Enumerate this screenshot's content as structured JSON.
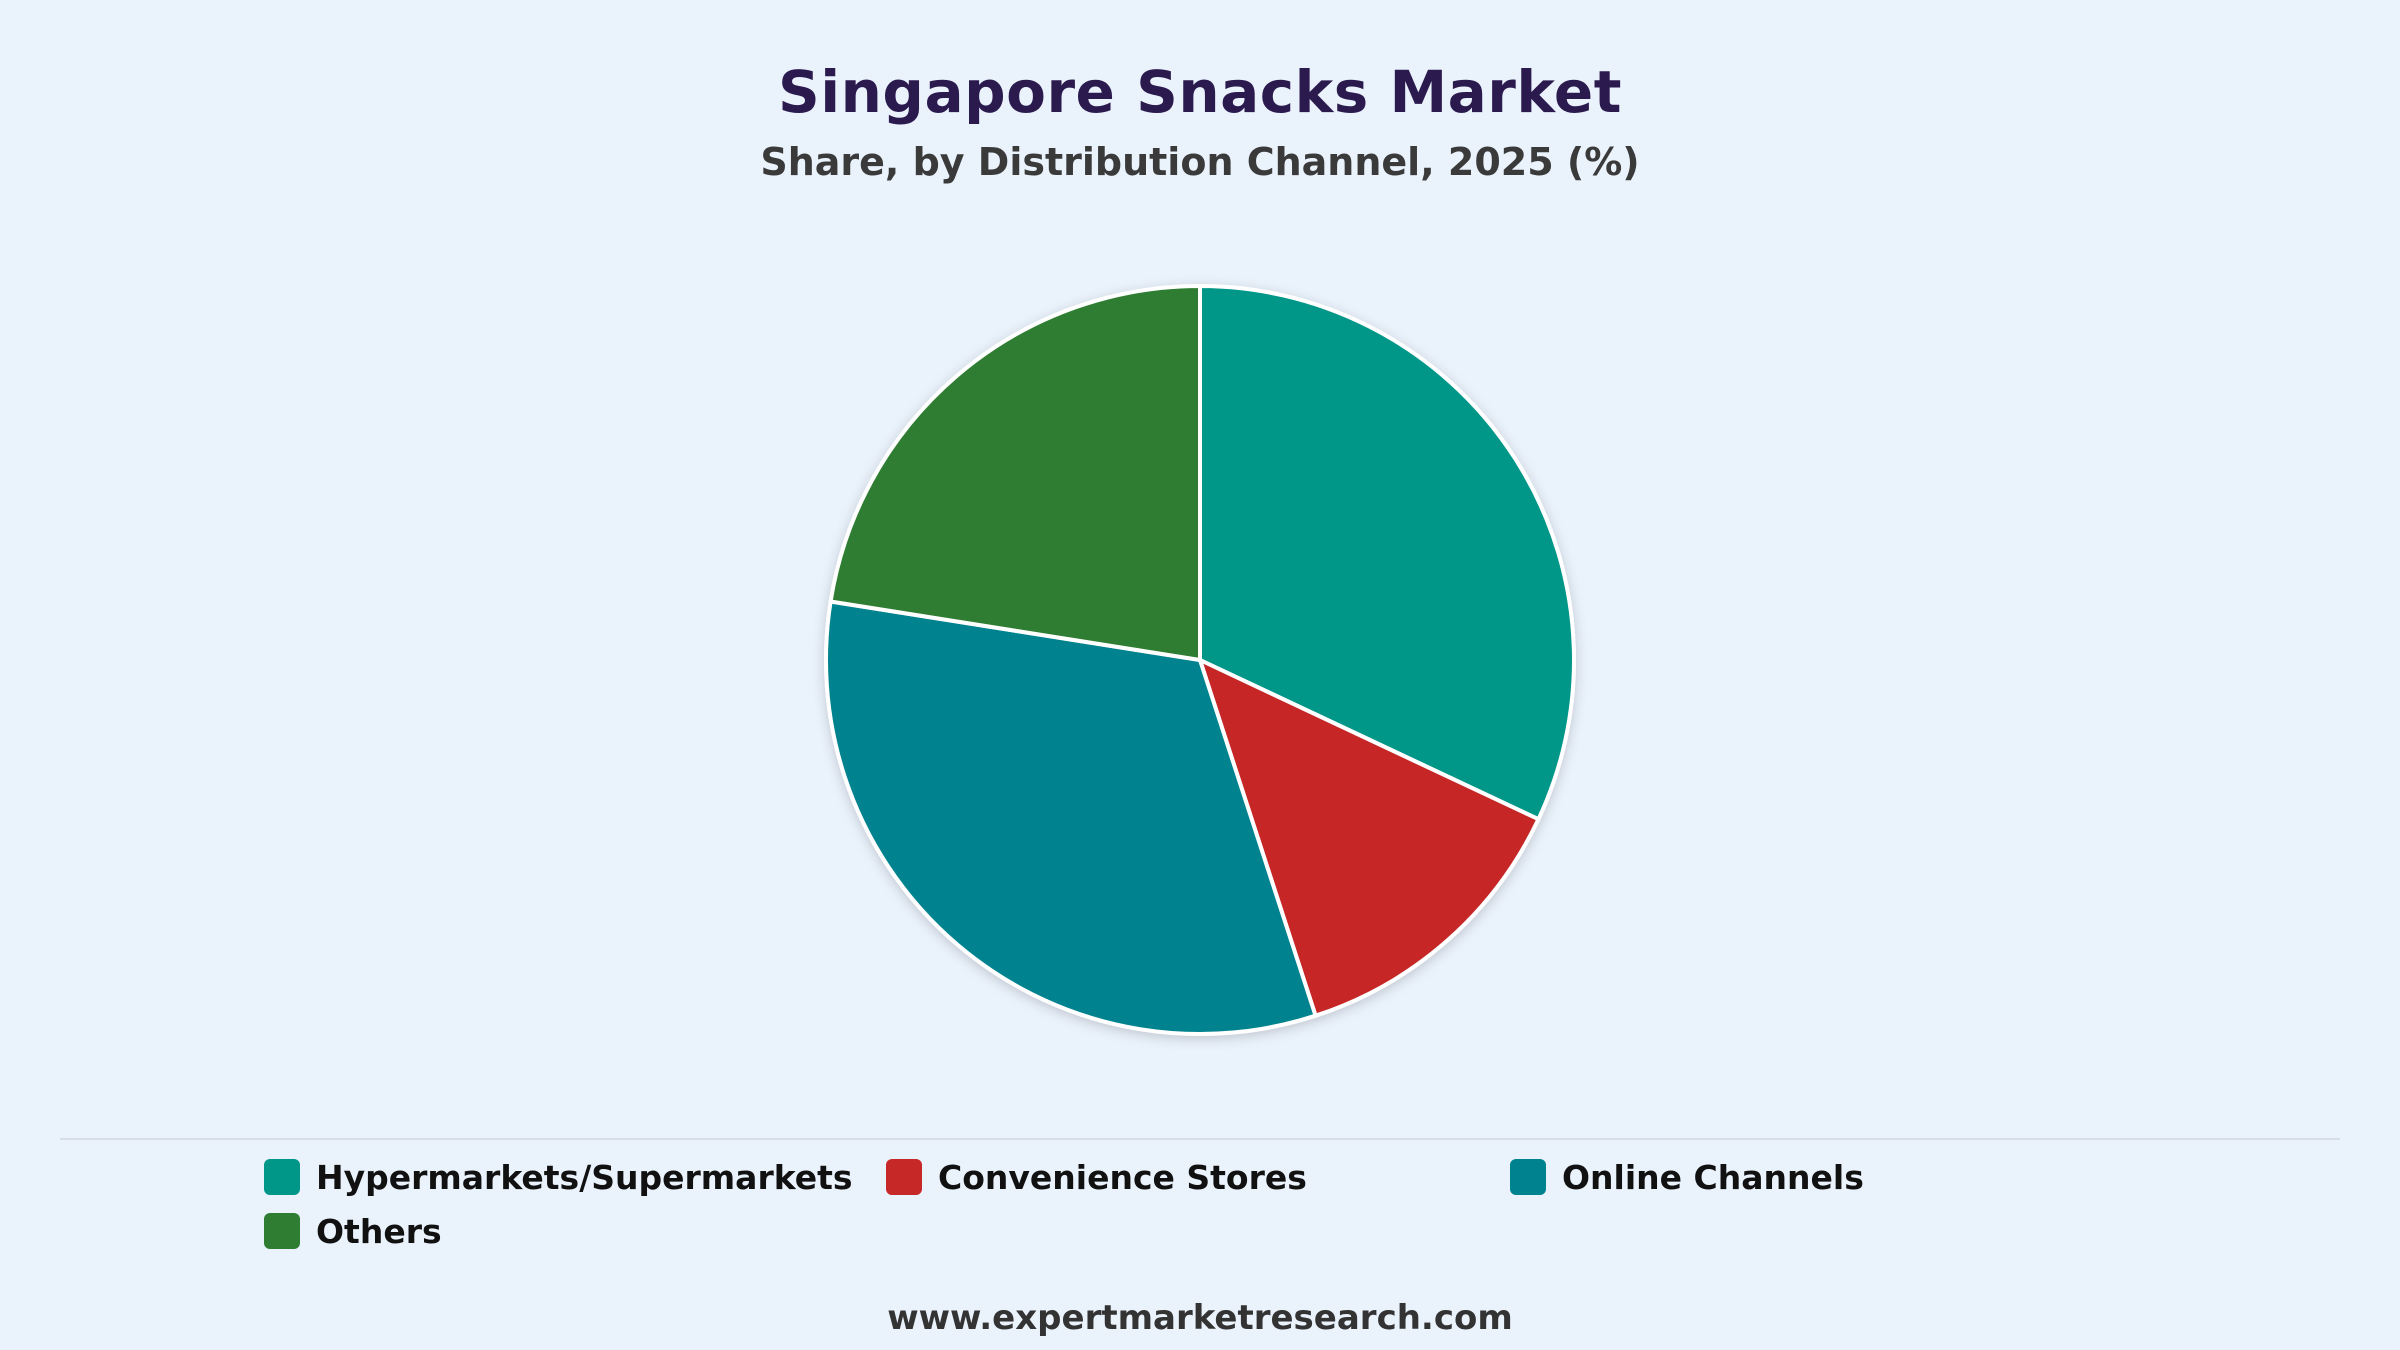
{
  "chart_data": {
    "type": "pie",
    "title": "Singapore Snacks Market",
    "subtitle": "Share, by Distribution Channel, 2025 (%)",
    "categories": [
      "Hypermarkets/Supermarkets",
      "Convenience Stores",
      "Online Channels",
      "Others"
    ],
    "values": [
      32,
      13,
      32.5,
      22.5
    ],
    "colors": [
      "#009688",
      "#C62828",
      "#00838F",
      "#2E7D32"
    ],
    "start_angle_deg": 0,
    "direction": "clockwise",
    "legend_position": "bottom"
  },
  "footer": {
    "source": "www.expertmarketresearch.com"
  }
}
